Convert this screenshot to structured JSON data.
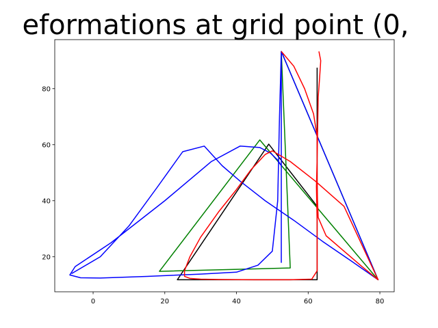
{
  "chart_data": {
    "type": "line",
    "title": "eformations at grid point (0,",
    "xlabel": "",
    "ylabel": "",
    "xlim": [
      -10.7,
      84
    ],
    "ylim": [
      7.5,
      97.5
    ],
    "xticks": [
      0,
      20,
      40,
      60,
      80
    ],
    "yticks": [
      20,
      40,
      60,
      80
    ],
    "grid": false,
    "legend": "none",
    "series": [
      {
        "color": "#000000",
        "x": [
          62.5,
          62.5,
          23.5,
          49,
          62.5
        ],
        "y": [
          87.5,
          11.8,
          11.8,
          60.2,
          38
        ]
      },
      {
        "color": "#008000",
        "x": [
          52.5,
          55,
          18.5,
          46.5,
          79.5,
          52.5
        ],
        "y": [
          93.3,
          16,
          14.8,
          61.7,
          11.8,
          93.3
        ]
      },
      {
        "color": "#0000ff",
        "x": [
          52.5,
          52,
          51.5,
          50,
          46,
          40,
          30,
          15,
          2,
          -3.5,
          -6.5,
          -5,
          5,
          20,
          33,
          41,
          46.5,
          49.5,
          51.5,
          52.5,
          52.5,
          52.5,
          52.5,
          79.5,
          72,
          64,
          56,
          48,
          41,
          36,
          31,
          25,
          18,
          10,
          2,
          -6
        ],
        "y": [
          93.3,
          70,
          40,
          22,
          17,
          14.5,
          13.8,
          13,
          12.4,
          12.5,
          13.5,
          16.5,
          25,
          40,
          54,
          59.5,
          59,
          57,
          54.5,
          52.5,
          25,
          18,
          93.3,
          11.8,
          18.5,
          25.5,
          33,
          40,
          47,
          52.5,
          59.5,
          57.5,
          45,
          31,
          20,
          14
        ],
        "note_order": [
          0,
          1,
          2,
          3,
          4,
          5,
          6,
          7,
          8,
          9,
          10
        ]
      },
      {
        "color": "#ff0000",
        "x": [
          52.5,
          56,
          59,
          61.5,
          62.5,
          62.5,
          62.3,
          62.5,
          62.5,
          61,
          55,
          45,
          35,
          30,
          27,
          25.5,
          25.5,
          27,
          30,
          35,
          40,
          44,
          48,
          50,
          55,
          62,
          70,
          79.5,
          75,
          70,
          65,
          62.8,
          62.6,
          62.5,
          62.5,
          62.6,
          62.7,
          62.8,
          63.2,
          63.5,
          63
        ],
        "y": [
          93.3,
          88,
          80,
          71,
          63,
          55,
          45,
          32,
          15,
          12,
          11.8,
          11.8,
          11.9,
          12,
          12.3,
          13,
          15,
          20,
          27,
          36,
          44,
          51,
          56.5,
          57.8,
          54,
          47,
          38,
          11.8,
          16.5,
          22,
          27.5,
          34,
          40,
          47,
          55,
          62,
          70,
          77,
          84,
          90,
          93.3
        ]
      }
    ]
  }
}
